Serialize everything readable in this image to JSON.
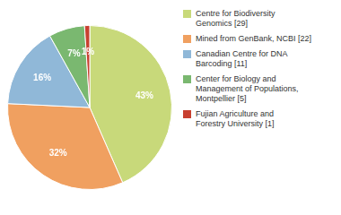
{
  "chart_data": {
    "type": "pie",
    "categories": [
      "Centre for Biodiversity\nGenomics [29]",
      "Mined from GenBank, NCBI [22]",
      "Canadian Centre for DNA\nBarcoding [11]",
      "Center for Biology and\nManagement of Populations,\nMontpellier [5]",
      "Fujian Agriculture and\nForestry University [1]"
    ],
    "values": [
      43,
      32,
      16,
      7,
      1
    ],
    "value_labels": [
      "43%",
      "32%",
      "16%",
      "7%",
      "1%"
    ],
    "colors": [
      "#c8d97a",
      "#f0a060",
      "#90b8d8",
      "#7ab870",
      "#c84030"
    ],
    "data_labels": true,
    "legend": "right"
  }
}
